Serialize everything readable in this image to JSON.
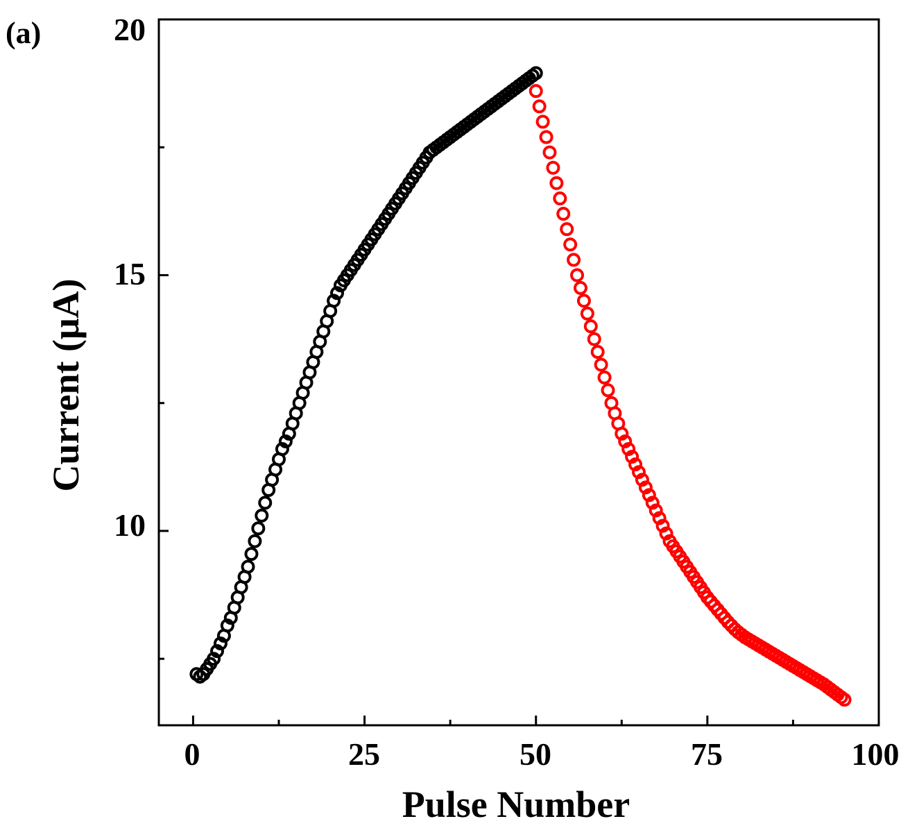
{
  "chart_data": {
    "type": "scatter",
    "panel_label": "(a)",
    "xlabel": "Pulse Number",
    "ylabel": "Current (μA)",
    "xlim": [
      -5,
      100
    ],
    "ylim": [
      6.2,
      20
    ],
    "xticks": [
      "0",
      "25",
      "50",
      "75",
      "100"
    ],
    "yticks": [
      "10",
      "15",
      "20"
    ],
    "grid": false,
    "legend": "none",
    "series": [
      {
        "color": "#000000",
        "x": [
          0.5,
          1.0,
          1.5,
          2.0,
          2.5,
          3.0,
          3.5,
          4.0,
          4.5,
          5.0,
          5.5,
          6.0,
          6.5,
          7.0,
          7.5,
          8.0,
          8.5,
          9.0,
          9.5,
          10.0,
          10.5,
          11.0,
          11.5,
          12.0,
          12.5,
          13.0,
          13.5,
          14.0,
          14.5,
          15.0,
          15.5,
          16.0,
          16.5,
          17.0,
          17.5,
          18.0,
          18.5,
          19.0,
          19.5,
          20.0,
          20.5,
          21.0,
          21.5,
          22.0,
          22.5,
          23.0,
          23.5,
          24.0,
          24.5,
          25.0,
          25.5,
          26.0,
          26.5,
          27.0,
          27.5,
          28.0,
          28.5,
          29.0,
          29.5,
          30.0,
          30.5,
          31.0,
          31.5,
          32.0,
          32.5,
          33.0,
          33.5,
          34.0,
          34.5,
          35.0,
          35.5,
          36.0,
          36.5,
          37.0,
          37.5,
          38.0,
          38.5,
          39.0,
          39.5,
          40.0,
          40.5,
          41.0,
          41.5,
          42.0,
          42.5,
          43.0,
          43.5,
          44.0,
          44.5,
          45.0,
          45.5,
          46.0,
          46.5,
          47.0,
          47.5,
          48.0,
          48.5,
          49.0,
          49.5,
          50.0
        ],
        "y": [
          7.2,
          7.15,
          7.2,
          7.3,
          7.4,
          7.5,
          7.65,
          7.8,
          7.95,
          8.15,
          8.3,
          8.5,
          8.7,
          8.9,
          9.1,
          9.3,
          9.55,
          9.8,
          10.05,
          10.3,
          10.55,
          10.8,
          11.0,
          11.2,
          11.4,
          11.6,
          11.75,
          11.9,
          12.1,
          12.3,
          12.5,
          12.7,
          12.9,
          13.1,
          13.3,
          13.5,
          13.7,
          13.9,
          14.1,
          14.3,
          14.5,
          14.65,
          14.8,
          14.9,
          15.0,
          15.1,
          15.2,
          15.3,
          15.4,
          15.5,
          15.6,
          15.7,
          15.8,
          15.9,
          16.0,
          16.1,
          16.2,
          16.3,
          16.4,
          16.5,
          16.6,
          16.7,
          16.8,
          16.9,
          17.0,
          17.1,
          17.2,
          17.3,
          17.4,
          17.45,
          17.5,
          17.55,
          17.6,
          17.65,
          17.7,
          17.75,
          17.8,
          17.85,
          17.9,
          17.95,
          18.0,
          18.05,
          18.1,
          18.15,
          18.2,
          18.25,
          18.3,
          18.35,
          18.4,
          18.45,
          18.5,
          18.55,
          18.6,
          18.65,
          18.7,
          18.75,
          18.8,
          18.85,
          18.9,
          18.95
        ]
      },
      {
        "color": "#ff0000",
        "x": [
          50.0,
          50.5,
          51.0,
          51.5,
          52.0,
          52.5,
          53.0,
          53.5,
          54.0,
          54.5,
          55.0,
          55.5,
          56.0,
          56.5,
          57.0,
          57.5,
          58.0,
          58.5,
          59.0,
          59.5,
          60.0,
          60.5,
          61.0,
          61.5,
          62.0,
          62.5,
          63.0,
          63.5,
          64.0,
          64.5,
          65.0,
          65.5,
          66.0,
          66.5,
          67.0,
          67.5,
          68.0,
          68.5,
          69.0,
          69.5,
          70.0,
          70.5,
          71.0,
          71.5,
          72.0,
          72.5,
          73.0,
          73.5,
          74.0,
          74.5,
          75.0,
          75.5,
          76.0,
          76.5,
          77.0,
          77.5,
          78.0,
          78.5,
          79.0,
          79.5,
          80.0,
          80.5,
          81.0,
          81.5,
          82.0,
          82.5,
          83.0,
          83.5,
          84.0,
          84.5,
          85.0,
          85.5,
          86.0,
          86.5,
          87.0,
          87.5,
          88.0,
          88.5,
          89.0,
          89.5,
          90.0,
          90.5,
          91.0,
          91.5,
          92.0,
          92.5,
          93.0,
          93.5,
          94.0,
          94.5,
          95.0
        ],
        "y": [
          18.6,
          18.3,
          18.0,
          17.7,
          17.4,
          17.1,
          16.8,
          16.5,
          16.2,
          15.9,
          15.6,
          15.3,
          15.0,
          14.75,
          14.5,
          14.25,
          14.0,
          13.75,
          13.5,
          13.25,
          13.0,
          12.75,
          12.5,
          12.3,
          12.1,
          11.9,
          11.75,
          11.6,
          11.45,
          11.3,
          11.15,
          11.0,
          10.85,
          10.7,
          10.55,
          10.4,
          10.25,
          10.1,
          9.95,
          9.8,
          9.7,
          9.6,
          9.5,
          9.4,
          9.3,
          9.2,
          9.1,
          9.0,
          8.9,
          8.8,
          8.7,
          8.62,
          8.54,
          8.46,
          8.38,
          8.3,
          8.22,
          8.15,
          8.08,
          8.02,
          7.97,
          7.92,
          7.88,
          7.84,
          7.8,
          7.76,
          7.72,
          7.68,
          7.64,
          7.6,
          7.56,
          7.52,
          7.48,
          7.44,
          7.4,
          7.36,
          7.32,
          7.28,
          7.24,
          7.2,
          7.16,
          7.12,
          7.08,
          7.04,
          7.0,
          6.95,
          6.9,
          6.85,
          6.8,
          6.75,
          6.7
        ]
      }
    ]
  }
}
